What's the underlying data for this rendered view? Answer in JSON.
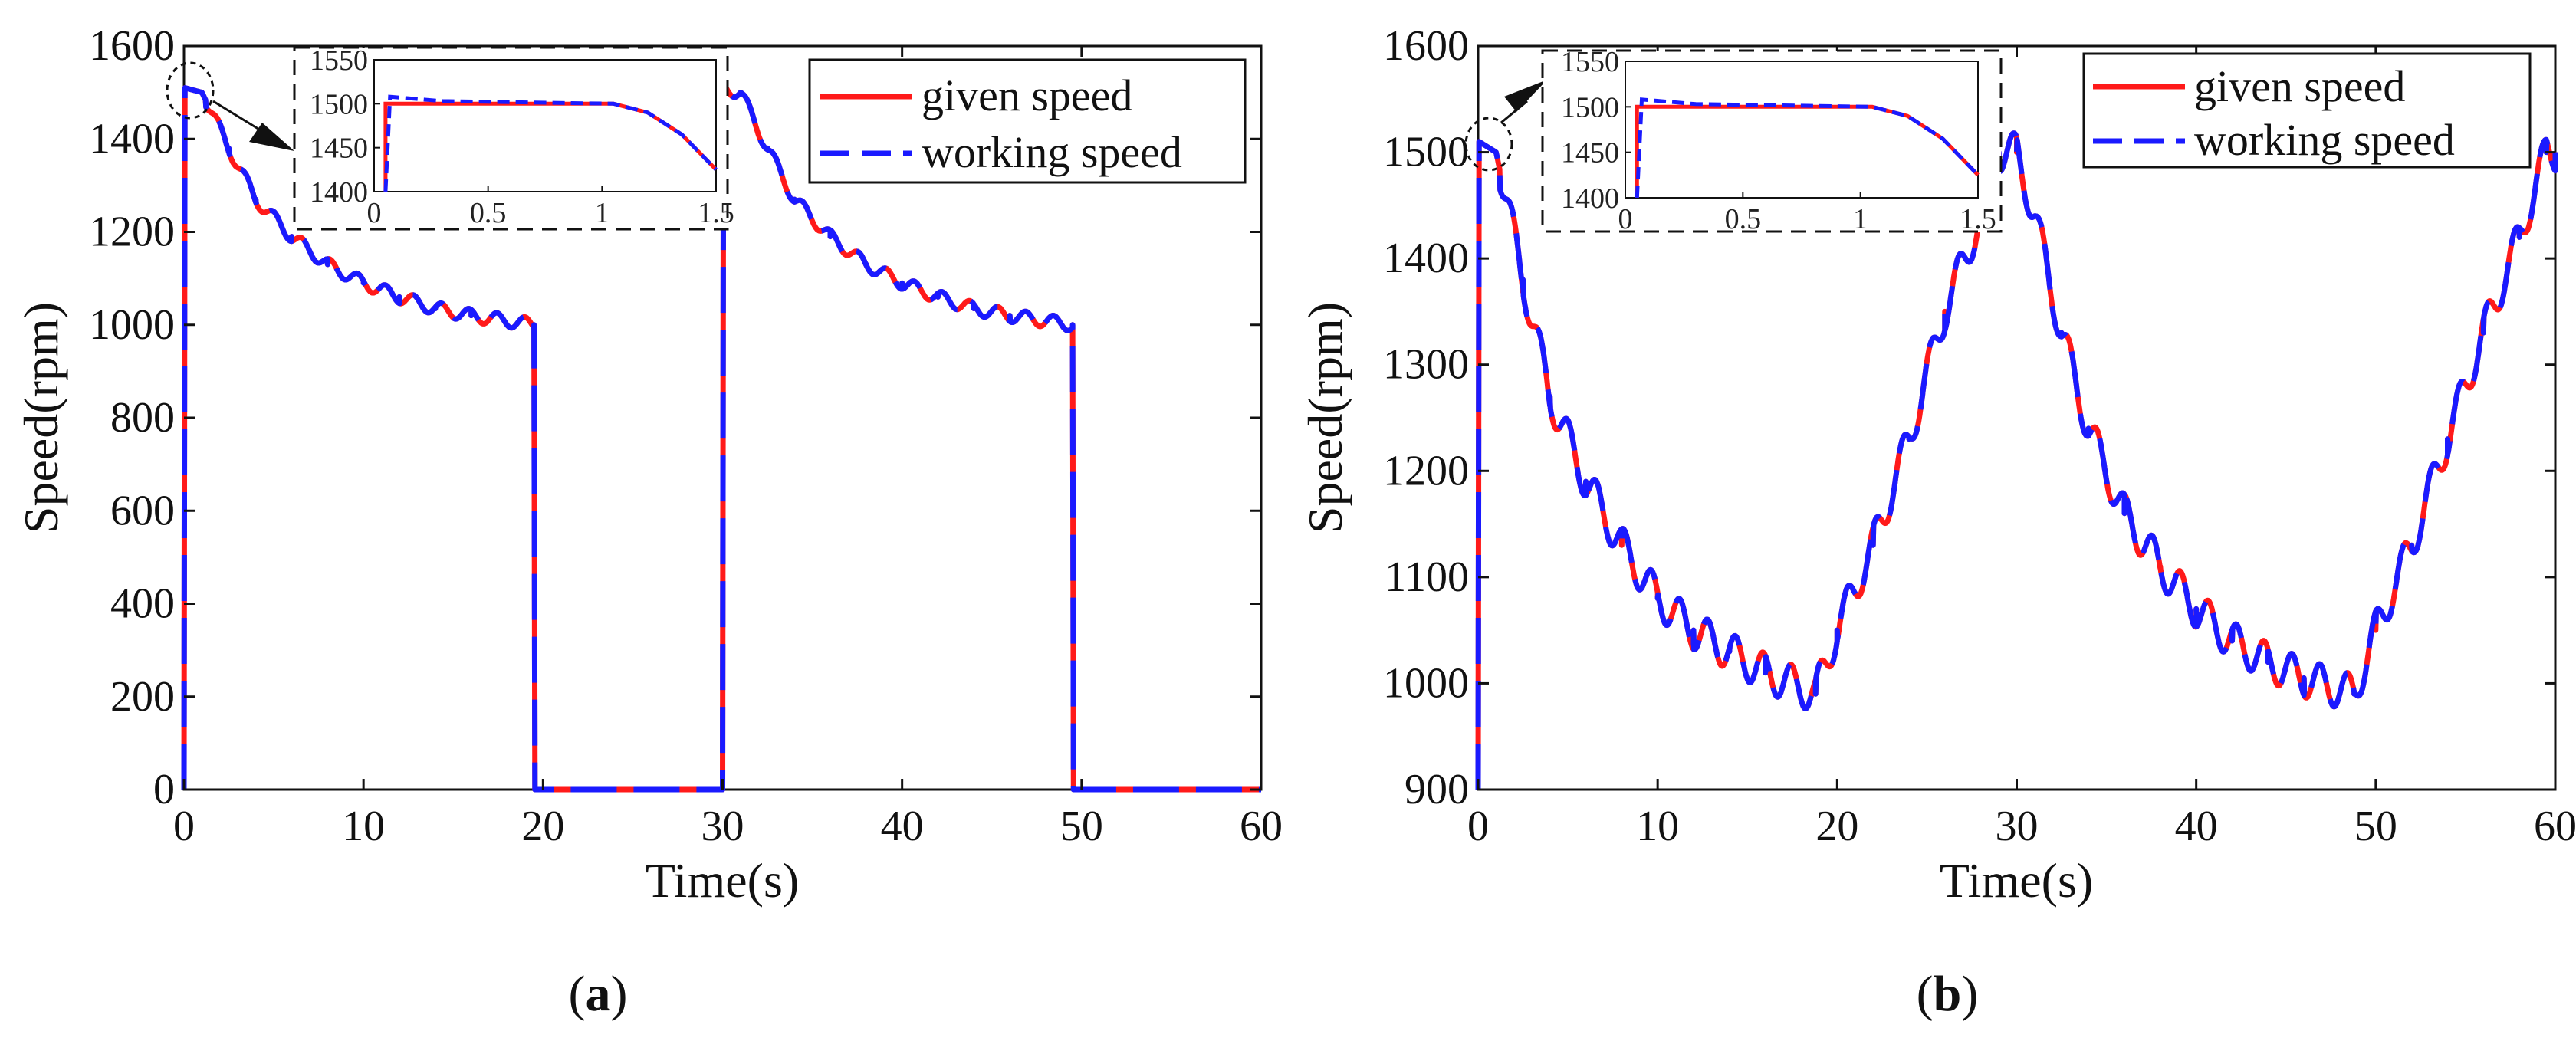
{
  "colors": {
    "given": "#ff1a1a",
    "working": "#1a1aff",
    "axis": "#111111"
  },
  "chart_data": [
    {
      "type": "line",
      "panel": "a",
      "caption_letter": "a",
      "xlabel": "Time(s)",
      "ylabel": "Speed(rpm)",
      "xlim": [
        0,
        60
      ],
      "ylim": [
        0,
        1600
      ],
      "xticks": [
        0,
        10,
        20,
        30,
        40,
        50,
        60
      ],
      "yticks": [
        0,
        200,
        400,
        600,
        800,
        1000,
        1200,
        1400,
        1600
      ],
      "legend": [
        "given speed",
        "working speed"
      ],
      "legend_position": "top-right",
      "profile": "step",
      "series": [
        {
          "name": "given speed",
          "style": "solid"
        },
        {
          "name": "working speed",
          "style": "dashed"
        }
      ],
      "keypoints": [
        {
          "t": 0,
          "v": 0
        },
        {
          "t": 0.05,
          "v": 1510
        },
        {
          "t": 1.0,
          "v": 1500
        },
        {
          "t": 2.5,
          "v": 1380
        },
        {
          "t": 4,
          "v": 1270
        },
        {
          "t": 6,
          "v": 1190
        },
        {
          "t": 8,
          "v": 1130
        },
        {
          "t": 10,
          "v": 1090
        },
        {
          "t": 12,
          "v": 1060
        },
        {
          "t": 14,
          "v": 1035
        },
        {
          "t": 16,
          "v": 1020
        },
        {
          "t": 19.5,
          "v": 1000
        },
        {
          "t": 19.55,
          "v": 0
        },
        {
          "t": 30,
          "v": 0
        },
        {
          "t": 30.05,
          "v": 1510
        },
        {
          "t": 31,
          "v": 1500
        },
        {
          "t": 32.5,
          "v": 1380
        },
        {
          "t": 34,
          "v": 1270
        },
        {
          "t": 36,
          "v": 1190
        },
        {
          "t": 38,
          "v": 1130
        },
        {
          "t": 40,
          "v": 1090
        },
        {
          "t": 42,
          "v": 1060
        },
        {
          "t": 44,
          "v": 1035
        },
        {
          "t": 46,
          "v": 1020
        },
        {
          "t": 49.5,
          "v": 1000
        },
        {
          "t": 49.55,
          "v": 0
        },
        {
          "t": 60,
          "v": 0
        }
      ],
      "inset": {
        "xlim": [
          0,
          1.5
        ],
        "ylim": [
          1400,
          1550
        ],
        "xticks": [
          0,
          0.5,
          1,
          1.5
        ],
        "xtick_labels": [
          "0",
          "0.5",
          "1",
          "1.5"
        ],
        "yticks": [
          1400,
          1450,
          1500,
          1550
        ],
        "given": [
          {
            "t": 0.05,
            "v": 1400
          },
          {
            "t": 0.05,
            "v": 1500
          },
          {
            "t": 1.05,
            "v": 1500
          },
          {
            "t": 1.2,
            "v": 1490
          },
          {
            "t": 1.35,
            "v": 1465
          },
          {
            "t": 1.5,
            "v": 1425
          }
        ],
        "working": [
          {
            "t": 0.05,
            "v": 1400
          },
          {
            "t": 0.07,
            "v": 1508
          },
          {
            "t": 0.3,
            "v": 1503
          },
          {
            "t": 1.05,
            "v": 1500
          },
          {
            "t": 1.2,
            "v": 1490
          },
          {
            "t": 1.35,
            "v": 1465
          },
          {
            "t": 1.5,
            "v": 1425
          }
        ]
      }
    },
    {
      "type": "line",
      "panel": "b",
      "caption_letter": "b",
      "xlabel": "Time(s)",
      "ylabel": "Speed(rpm)",
      "xlim": [
        0,
        60
      ],
      "ylim": [
        900,
        1600
      ],
      "xticks": [
        0,
        10,
        20,
        30,
        40,
        50,
        60
      ],
      "yticks": [
        900,
        1000,
        1100,
        1200,
        1300,
        1400,
        1500,
        1600
      ],
      "legend": [
        "given speed",
        "working speed"
      ],
      "legend_position": "top-right",
      "profile": "triangle",
      "series": [
        {
          "name": "given speed",
          "style": "solid"
        },
        {
          "name": "working speed",
          "style": "dashed"
        }
      ],
      "keypoints": [
        {
          "t": 0,
          "v": 900
        },
        {
          "t": 0.05,
          "v": 1510
        },
        {
          "t": 1.0,
          "v": 1500
        },
        {
          "t": 2.5,
          "v": 1380
        },
        {
          "t": 4,
          "v": 1270
        },
        {
          "t": 6,
          "v": 1190
        },
        {
          "t": 8,
          "v": 1130
        },
        {
          "t": 10,
          "v": 1080
        },
        {
          "t": 12,
          "v": 1050
        },
        {
          "t": 14,
          "v": 1030
        },
        {
          "t": 16,
          "v": 1010
        },
        {
          "t": 18.8,
          "v": 990
        },
        {
          "t": 20,
          "v": 1050
        },
        {
          "t": 22,
          "v": 1130
        },
        {
          "t": 24,
          "v": 1230
        },
        {
          "t": 26,
          "v": 1350
        },
        {
          "t": 28,
          "v": 1440
        },
        {
          "t": 29,
          "v": 1500
        },
        {
          "t": 30,
          "v": 1500
        },
        {
          "t": 31,
          "v": 1440
        },
        {
          "t": 32.5,
          "v": 1330
        },
        {
          "t": 34,
          "v": 1240
        },
        {
          "t": 36,
          "v": 1160
        },
        {
          "t": 38,
          "v": 1110
        },
        {
          "t": 40,
          "v": 1070
        },
        {
          "t": 42,
          "v": 1040
        },
        {
          "t": 44,
          "v": 1020
        },
        {
          "t": 46,
          "v": 1005
        },
        {
          "t": 48.8,
          "v": 990
        },
        {
          "t": 50,
          "v": 1050
        },
        {
          "t": 52,
          "v": 1130
        },
        {
          "t": 54,
          "v": 1230
        },
        {
          "t": 56,
          "v": 1330
        },
        {
          "t": 58,
          "v": 1420
        },
        {
          "t": 59.5,
          "v": 1500
        },
        {
          "t": 60,
          "v": 1500
        }
      ],
      "inset": {
        "xlim": [
          0,
          1.5
        ],
        "ylim": [
          1400,
          1550
        ],
        "xticks": [
          0,
          0.5,
          1,
          1.5
        ],
        "xtick_labels": [
          "0",
          "0.5",
          "1",
          "1.5"
        ],
        "yticks": [
          1400,
          1450,
          1500,
          1550
        ],
        "given": [
          {
            "t": 0.05,
            "v": 1400
          },
          {
            "t": 0.05,
            "v": 1500
          },
          {
            "t": 1.05,
            "v": 1500
          },
          {
            "t": 1.2,
            "v": 1490
          },
          {
            "t": 1.35,
            "v": 1465
          },
          {
            "t": 1.5,
            "v": 1425
          }
        ],
        "working": [
          {
            "t": 0.05,
            "v": 1400
          },
          {
            "t": 0.07,
            "v": 1508
          },
          {
            "t": 0.3,
            "v": 1503
          },
          {
            "t": 1.05,
            "v": 1500
          },
          {
            "t": 1.2,
            "v": 1490
          },
          {
            "t": 1.35,
            "v": 1465
          },
          {
            "t": 1.5,
            "v": 1425
          }
        ]
      }
    }
  ]
}
